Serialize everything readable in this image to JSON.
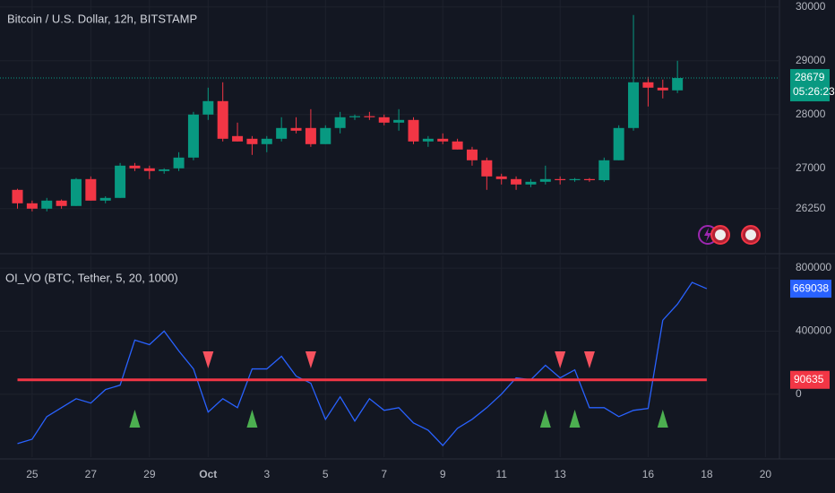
{
  "chart_data": [
    {
      "type": "candlestick",
      "title": "Bitcoin / U.S. Dollar, 12h, BITSTAMP",
      "categories": [
        null,
        "25",
        null,
        null,
        null,
        "27",
        null,
        null,
        null,
        "29",
        null,
        null,
        null,
        "Oct",
        null,
        null,
        null,
        "3",
        null,
        null,
        null,
        "5",
        null,
        null,
        null,
        "7",
        null,
        null,
        null,
        "9",
        null,
        null,
        null,
        "11",
        null,
        null,
        null,
        "13",
        null,
        null,
        null,
        null,
        null,
        "16",
        null,
        null,
        null,
        "18",
        null,
        null,
        null,
        "20"
      ],
      "open": [
        26600,
        26350,
        26250,
        26400,
        26300,
        26800,
        26400,
        26450,
        27050,
        27000,
        26950,
        27000,
        27200,
        28000,
        28250,
        27600,
        27550,
        27450,
        27550,
        27750,
        27750,
        27450,
        27750,
        27950,
        27970,
        27950,
        27850,
        27900,
        27500,
        27550,
        27500,
        27350,
        27150,
        26850,
        26800,
        26700,
        26750,
        26800,
        26780,
        26800,
        26780,
        27150,
        27750,
        28600,
        28500,
        28450,
        null,
        null,
        null,
        null,
        null,
        null
      ],
      "high": [
        26620,
        26400,
        26450,
        26420,
        26820,
        26850,
        26480,
        27100,
        27100,
        27050,
        27000,
        27300,
        28050,
        28500,
        28600,
        27850,
        27600,
        27600,
        27950,
        27950,
        28100,
        27800,
        28050,
        28000,
        28050,
        28000,
        28100,
        27950,
        27600,
        27650,
        27550,
        27400,
        27200,
        26900,
        26850,
        26800,
        27050,
        26850,
        26820,
        26820,
        27200,
        27800,
        29850,
        28700,
        28650,
        29000,
        null,
        null,
        null,
        null,
        null,
        null
      ],
      "low": [
        26250,
        26200,
        26200,
        26250,
        26300,
        26400,
        26350,
        26450,
        26950,
        26800,
        26900,
        26950,
        27150,
        27900,
        27500,
        27500,
        27250,
        27300,
        27500,
        27650,
        27400,
        27450,
        27650,
        27900,
        27900,
        27800,
        27700,
        27450,
        27400,
        27450,
        27350,
        27050,
        26600,
        26700,
        26600,
        26650,
        26700,
        26700,
        26750,
        26750,
        26750,
        27150,
        27700,
        28150,
        28300,
        28400,
        null,
        null,
        null,
        null,
        null,
        null
      ],
      "close": [
        26350,
        26250,
        26400,
        26300,
        26800,
        26400,
        26450,
        27050,
        27000,
        26950,
        26980,
        27200,
        28000,
        28250,
        27550,
        27500,
        27450,
        27550,
        27750,
        27700,
        27450,
        27750,
        27950,
        27970,
        27950,
        27850,
        27900,
        27500,
        27550,
        27500,
        27350,
        27150,
        26850,
        26800,
        26700,
        26750,
        26800,
        26780,
        26800,
        26780,
        27150,
        27750,
        28600,
        28500,
        28450,
        28679,
        null,
        null,
        null,
        null,
        null,
        null
      ],
      "up_color": "#089981",
      "down_color": "#f23645",
      "countdown": "05:26:23",
      "ylim": [
        25430,
        30130
      ],
      "yticks": [
        26250,
        27000,
        28000,
        29000,
        30000
      ],
      "grid": true
    },
    {
      "type": "line",
      "title": "OI_VO (BTC, Tether, 5, 20, 1000)",
      "series": [
        {
          "color": "#2962ff",
          "values": [
            -314000,
            -286000,
            -143000,
            -86000,
            -29000,
            -57000,
            29000,
            57000,
            343000,
            314000,
            400000,
            274000,
            160000,
            -114000,
            -29000,
            -86000,
            160000,
            160000,
            240000,
            114000,
            69000,
            -160000,
            -17000,
            -171000,
            -29000,
            -103000,
            -86000,
            -183000,
            -229000,
            -326000,
            -217000,
            -160000,
            -86000,
            0,
            103000,
            91000,
            183000,
            103000,
            154000,
            -86000,
            -86000,
            -143000,
            -103000,
            -91000,
            469000,
            571000,
            709000,
            669038,
            null,
            null,
            null,
            null
          ]
        }
      ],
      "threshold": {
        "value": 90635,
        "color": "#f23645"
      },
      "markers": {
        "sell": [
          13,
          20,
          37,
          39
        ],
        "buy": [
          8,
          16,
          36,
          38,
          44
        ],
        "sell_color": "#f7525f",
        "buy_color": "#4caf50"
      },
      "ylim": [
        -400000,
        880000
      ],
      "yticks": [
        0,
        400000,
        800000
      ],
      "grid": true
    }
  ]
}
